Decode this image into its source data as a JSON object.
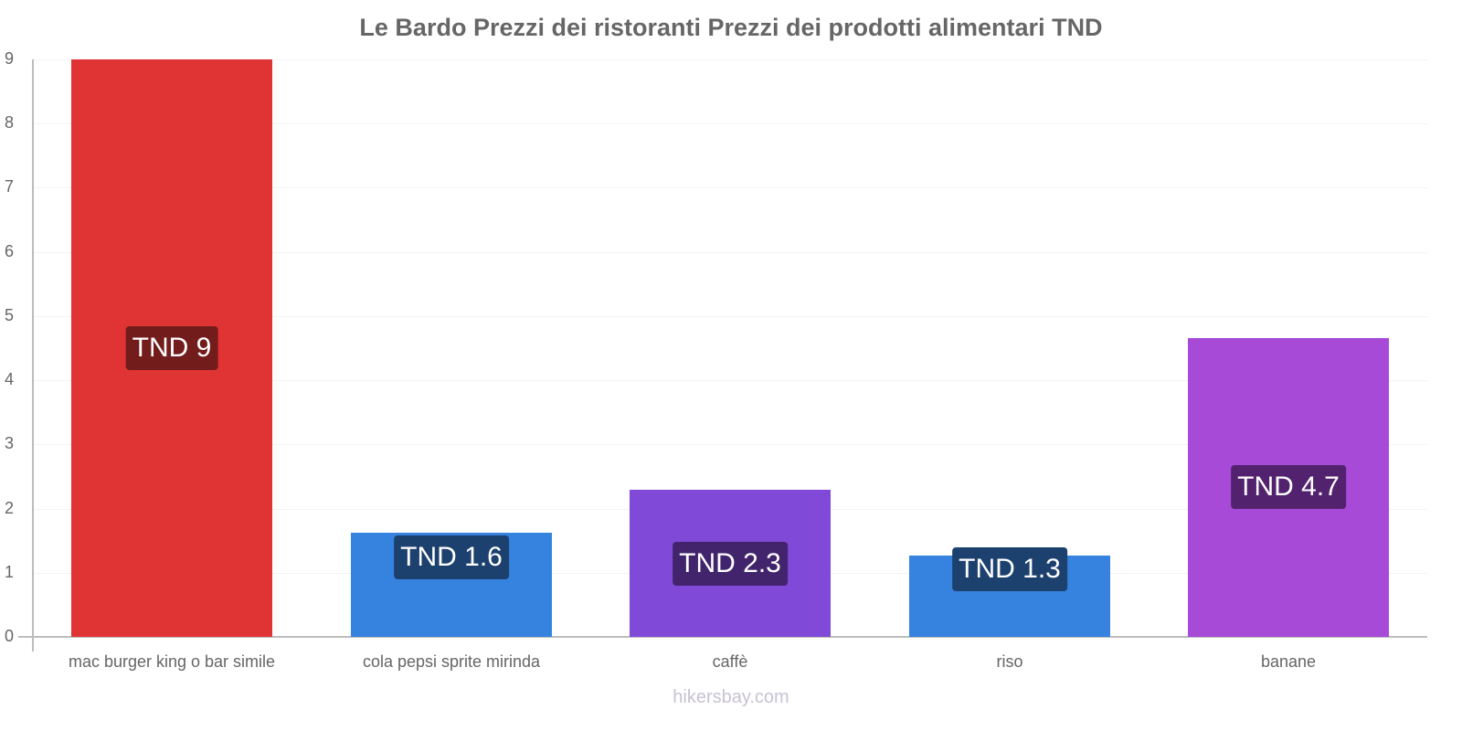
{
  "title": "Le Bardo Prezzi dei ristoranti Prezzi dei prodotti alimentari TND",
  "watermark": "hikersbay.com",
  "y_ticks": [
    "0",
    "1",
    "2",
    "3",
    "4",
    "5",
    "6",
    "7",
    "8",
    "9"
  ],
  "bars": [
    {
      "category": "mac burger king o bar simile",
      "value": 9,
      "label": "TND 9",
      "color": "#e03434",
      "label_bg": "#731c1c"
    },
    {
      "category": "cola pepsi sprite mirinda",
      "value": 1.62,
      "label": "TND 1.6",
      "color": "#3583de",
      "label_bg": "#1d416f"
    },
    {
      "category": "caffè",
      "value": 2.29,
      "label": "TND 2.3",
      "color": "#8149d8",
      "label_bg": "#42246c"
    },
    {
      "category": "riso",
      "value": 1.27,
      "label": "TND 1.3",
      "color": "#3583de",
      "label_bg": "#1d416f"
    },
    {
      "category": "banane",
      "value": 4.66,
      "label": "TND 4.7",
      "color": "#a74ad8",
      "label_bg": "#53226f"
    }
  ],
  "chart_data": {
    "type": "bar",
    "title": "Le Bardo Prezzi dei ristoranti Prezzi dei prodotti alimentari TND",
    "categories": [
      "mac burger king o bar simile",
      "cola pepsi sprite mirinda",
      "caffè",
      "riso",
      "banane"
    ],
    "values": [
      9,
      1.6,
      2.3,
      1.3,
      4.7
    ],
    "data_labels": [
      "TND 9",
      "TND 1.6",
      "TND 2.3",
      "TND 1.3",
      "TND 4.7"
    ],
    "colors": [
      "#e03434",
      "#3583de",
      "#8149d8",
      "#3583de",
      "#a74ad8"
    ],
    "xlabel": "",
    "ylabel": "",
    "ylim": [
      0,
      9
    ],
    "yticks": [
      0,
      1,
      2,
      3,
      4,
      5,
      6,
      7,
      8,
      9
    ],
    "grid": true,
    "legend": "none"
  }
}
